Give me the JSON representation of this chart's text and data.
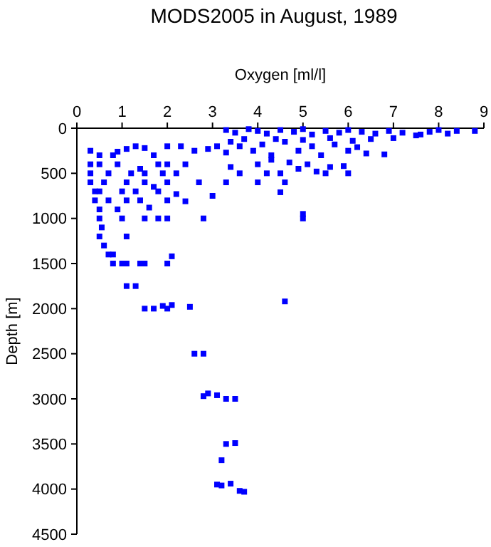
{
  "chart_data": {
    "type": "scatter",
    "title": "MODS2005 in August, 1989",
    "xlabel": "Oxygen [ml/l]",
    "ylabel": "Depth [m]",
    "xlim": [
      0,
      9
    ],
    "xticks": [
      0,
      1,
      2,
      3,
      4,
      5,
      6,
      7,
      8,
      9
    ],
    "ylim": [
      4500,
      0
    ],
    "yticks": [
      0,
      500,
      1000,
      1500,
      2000,
      2500,
      3000,
      3500,
      4000,
      4500
    ],
    "marker": "square",
    "grid": false,
    "series": [
      {
        "color": "#0000ff",
        "x": [
          3.3,
          3.5,
          3.8,
          4.0,
          4.2,
          4.5,
          4.8,
          5.0,
          5.2,
          5.5,
          5.8,
          6.0,
          6.3,
          6.6,
          6.9,
          7.2,
          7.5,
          7.8,
          8.0,
          8.4,
          8.8,
          7.0,
          6.5,
          7.6,
          8.2,
          3.4,
          3.6,
          3.9,
          4.1,
          4.3,
          4.6,
          4.9,
          5.2,
          5.4,
          5.7,
          6.0,
          6.2,
          6.4,
          6.8,
          3.3,
          3.7,
          4.4,
          5.0,
          5.6,
          6.1,
          4.0,
          4.3,
          4.7,
          4.9,
          5.1,
          5.3,
          5.6,
          5.9,
          6.0,
          5.5,
          4.5,
          4.2,
          3.6,
          3.4,
          3.3,
          4.0,
          4.6,
          4.5,
          5.0,
          5.0,
          3.0,
          2.7,
          2.8,
          0.3,
          0.5,
          0.8,
          1.1,
          1.3,
          1.5,
          2.0,
          2.3,
          2.6,
          2.9,
          3.1,
          0.9,
          1.7,
          0.3,
          0.5,
          0.9,
          1.4,
          1.8,
          2.0,
          2.4,
          0.3,
          0.7,
          1.2,
          1.5,
          1.9,
          2.2,
          0.3,
          0.6,
          1.1,
          1.5,
          1.7,
          2.0,
          0.4,
          0.5,
          1.0,
          1.3,
          1.8,
          2.2,
          0.4,
          0.7,
          1.1,
          1.4,
          2.0,
          2.4,
          0.5,
          0.9,
          1.6,
          0.5,
          1.0,
          1.5,
          1.8,
          2.0,
          0.55,
          0.5,
          1.1,
          0.6,
          0.7,
          0.8,
          0.8,
          1.0,
          1.1,
          1.4,
          1.5,
          2.0,
          2.1,
          1.1,
          1.3,
          1.5,
          1.7,
          1.9,
          2.0,
          2.1,
          2.5,
          4.6,
          2.6,
          2.8,
          2.8,
          2.9,
          3.1,
          3.3,
          3.5,
          3.3,
          3.5,
          3.2,
          3.1,
          3.2,
          3.4,
          3.6,
          3.7
        ],
        "values": [
          20,
          50,
          10,
          30,
          60,
          20,
          40,
          10,
          70,
          30,
          50,
          20,
          40,
          60,
          30,
          50,
          80,
          40,
          20,
          30,
          30,
          110,
          120,
          70,
          60,
          150,
          200,
          250,
          180,
          300,
          150,
          250,
          200,
          300,
          180,
          250,
          210,
          280,
          290,
          270,
          120,
          120,
          130,
          110,
          140,
          400,
          350,
          380,
          450,
          400,
          480,
          430,
          420,
          500,
          500,
          500,
          500,
          500,
          430,
          600,
          600,
          600,
          710,
          950,
          1000,
          750,
          600,
          1000,
          250,
          300,
          300,
          230,
          200,
          220,
          200,
          200,
          250,
          230,
          200,
          260,
          300,
          400,
          400,
          400,
          450,
          400,
          400,
          400,
          500,
          500,
          500,
          500,
          500,
          500,
          600,
          600,
          600,
          600,
          650,
          600,
          700,
          700,
          700,
          700,
          700,
          730,
          800,
          800,
          800,
          800,
          800,
          810,
          900,
          900,
          880,
          1000,
          1000,
          1000,
          1000,
          1000,
          1100,
          1200,
          1200,
          1300,
          1400,
          1400,
          1500,
          1500,
          1500,
          1500,
          1500,
          1500,
          1420,
          1750,
          1750,
          2000,
          2000,
          1970,
          2000,
          1960,
          1980,
          1920,
          2500,
          2500,
          2970,
          2940,
          2960,
          3000,
          3000,
          3500,
          3490,
          3680,
          3950,
          3960,
          3940,
          4020,
          4030
        ]
      }
    ]
  }
}
